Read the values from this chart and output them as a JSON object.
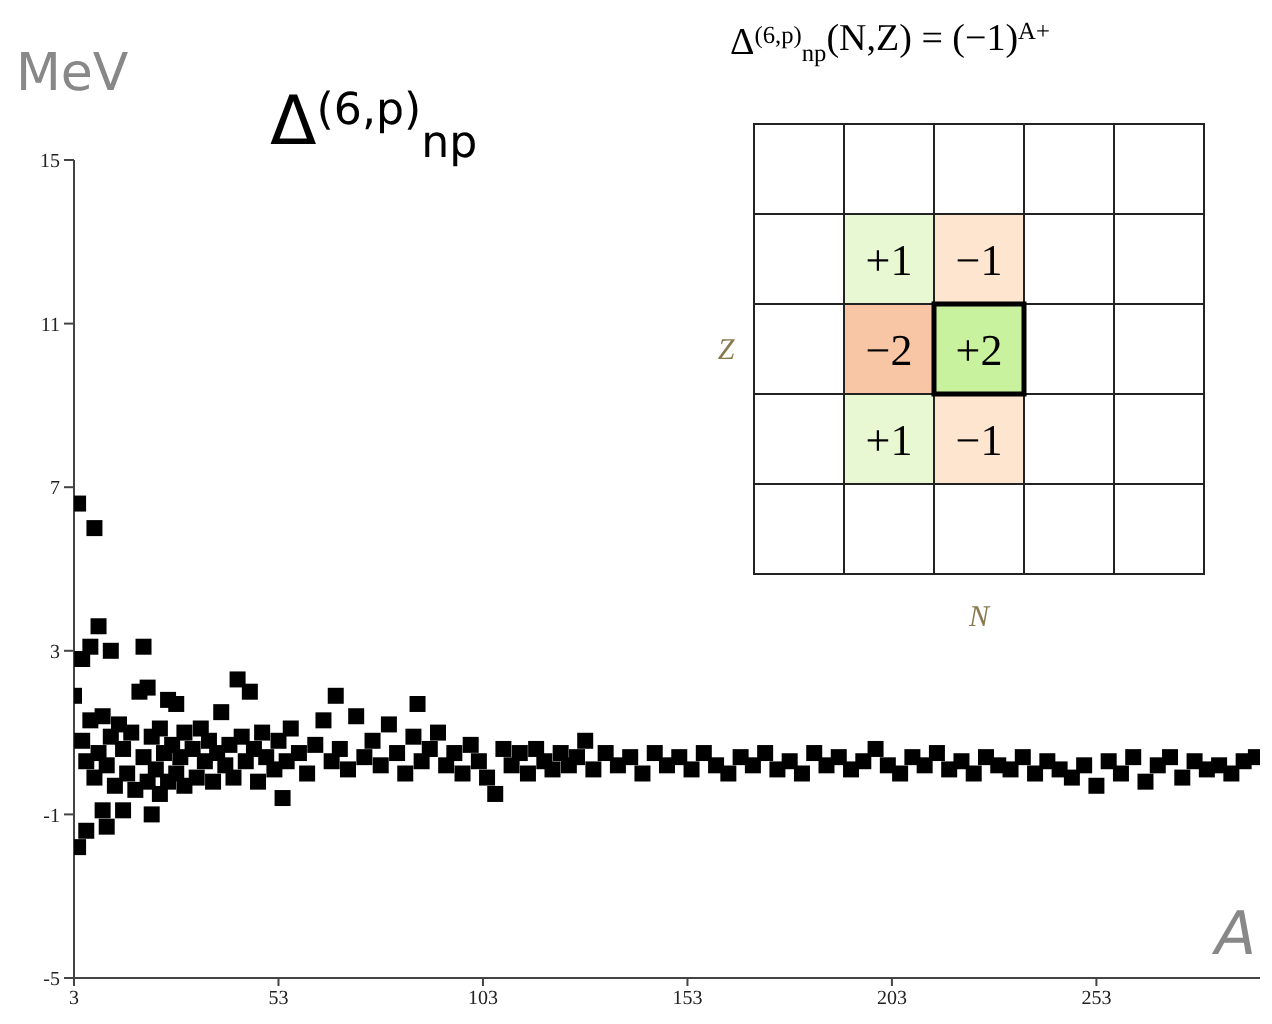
{
  "chart_data": [
    {
      "type": "scatter",
      "title": "Δ$^{(6,p)}$$_{np}$",
      "ylabel": "MeV",
      "xlabel": "A",
      "x": [
        3,
        4,
        4,
        5,
        5,
        6,
        6,
        7,
        7,
        8,
        8,
        9,
        9,
        10,
        10,
        11,
        11,
        12,
        12,
        13,
        14,
        15,
        15,
        16,
        17,
        18,
        19,
        20,
        20,
        21,
        21,
        22,
        22,
        23,
        24,
        24,
        25,
        26,
        26,
        27,
        28,
        28,
        29,
        30,
        30,
        32,
        33,
        34,
        35,
        36,
        37,
        38,
        39,
        40,
        41,
        42,
        43,
        44,
        45,
        46,
        47,
        48,
        49,
        50,
        52,
        53,
        54,
        55,
        56,
        58,
        60,
        62,
        64,
        66,
        67,
        68,
        70,
        72,
        74,
        76,
        78,
        80,
        82,
        84,
        86,
        87,
        88,
        90,
        92,
        94,
        96,
        98,
        100,
        102,
        104,
        106,
        108,
        110,
        112,
        114,
        116,
        118,
        120,
        122,
        124,
        126,
        128,
        130,
        133,
        136,
        139,
        142,
        145,
        148,
        151,
        154,
        157,
        160,
        163,
        166,
        169,
        172,
        175,
        178,
        181,
        184,
        187,
        190,
        193,
        196,
        199,
        202,
        205,
        208,
        211,
        214,
        217,
        220,
        223,
        226,
        229,
        232,
        235,
        238,
        241,
        244,
        247,
        250,
        253,
        256,
        259,
        262,
        265,
        268,
        271,
        274,
        277,
        280,
        283,
        286,
        289,
        292
      ],
      "values": [
        1.9,
        6.6,
        -1.8,
        2.8,
        0.8,
        0.3,
        -1.4,
        3.1,
        1.3,
        6.0,
        -0.1,
        3.6,
        0.5,
        -0.9,
        1.4,
        -1.3,
        0.2,
        3.0,
        0.9,
        -0.3,
        1.2,
        -0.9,
        0.6,
        0.0,
        1.0,
        -0.4,
        2.0,
        3.1,
        0.4,
        2.1,
        -0.2,
        -1.0,
        0.9,
        0.1,
        -0.5,
        1.1,
        0.5,
        1.8,
        -0.2,
        0.7,
        1.7,
        0.0,
        0.4,
        -0.3,
        1.0,
        0.6,
        -0.1,
        1.1,
        0.3,
        0.8,
        -0.2,
        0.5,
        1.5,
        0.2,
        0.7,
        -0.1,
        2.3,
        0.9,
        0.3,
        2.0,
        0.6,
        -0.2,
        1.0,
        0.4,
        0.1,
        0.8,
        -0.6,
        0.3,
        1.1,
        0.5,
        0.0,
        0.7,
        1.3,
        0.3,
        1.9,
        0.6,
        0.1,
        1.4,
        0.4,
        0.8,
        0.2,
        1.2,
        0.5,
        0.0,
        0.9,
        1.7,
        0.3,
        0.6,
        1.0,
        0.2,
        0.5,
        0.0,
        0.7,
        0.3,
        -0.1,
        -0.5,
        0.6,
        0.2,
        0.5,
        0.0,
        0.6,
        0.3,
        0.1,
        0.5,
        0.2,
        0.4,
        0.8,
        0.1,
        0.5,
        0.2,
        0.4,
        0.0,
        0.5,
        0.2,
        0.4,
        0.1,
        0.5,
        0.2,
        0.0,
        0.4,
        0.2,
        0.5,
        0.1,
        0.3,
        0.0,
        0.5,
        0.2,
        0.4,
        0.1,
        0.3,
        0.6,
        0.2,
        0.0,
        0.4,
        0.2,
        0.5,
        0.1,
        0.3,
        0.0,
        0.4,
        0.2,
        0.1,
        0.4,
        0.0,
        0.3,
        0.1,
        -0.1,
        0.2,
        -0.3,
        0.3,
        0.0,
        0.4,
        -0.2,
        0.2,
        0.4,
        -0.1,
        0.3,
        0.1,
        0.2,
        0.0,
        0.3,
        0.4
      ],
      "color": "#000000",
      "marker": "square",
      "xlim": [
        3,
        293
      ],
      "xticks": [
        3,
        53,
        103,
        153,
        203,
        253
      ],
      "ylim": [
        -5,
        15
      ],
      "yticks": [
        -5,
        -1,
        3,
        7,
        11,
        15
      ],
      "grid": false
    },
    {
      "type": "other",
      "title": "Δ$^{(6,p)}$$_{np}$(N,Z) = (−1)$^{A+}$",
      "xlabel": "N",
      "ylabel": "Z",
      "categories": [
        null,
        null
      ],
      "y_categories": [
        null,
        null,
        null
      ],
      "cell_labels": [
        [
          "+1",
          "−1"
        ],
        [
          "−2",
          "+2"
        ],
        [
          "+1",
          "−1"
        ]
      ],
      "colors": [
        [
          "#e8f8d3",
          "#fde5d0"
        ],
        [
          "#f9c6a5",
          "#c9f29f"
        ],
        [
          "#e8f8d3",
          "#fde5d0"
        ]
      ]
    }
  ]
}
